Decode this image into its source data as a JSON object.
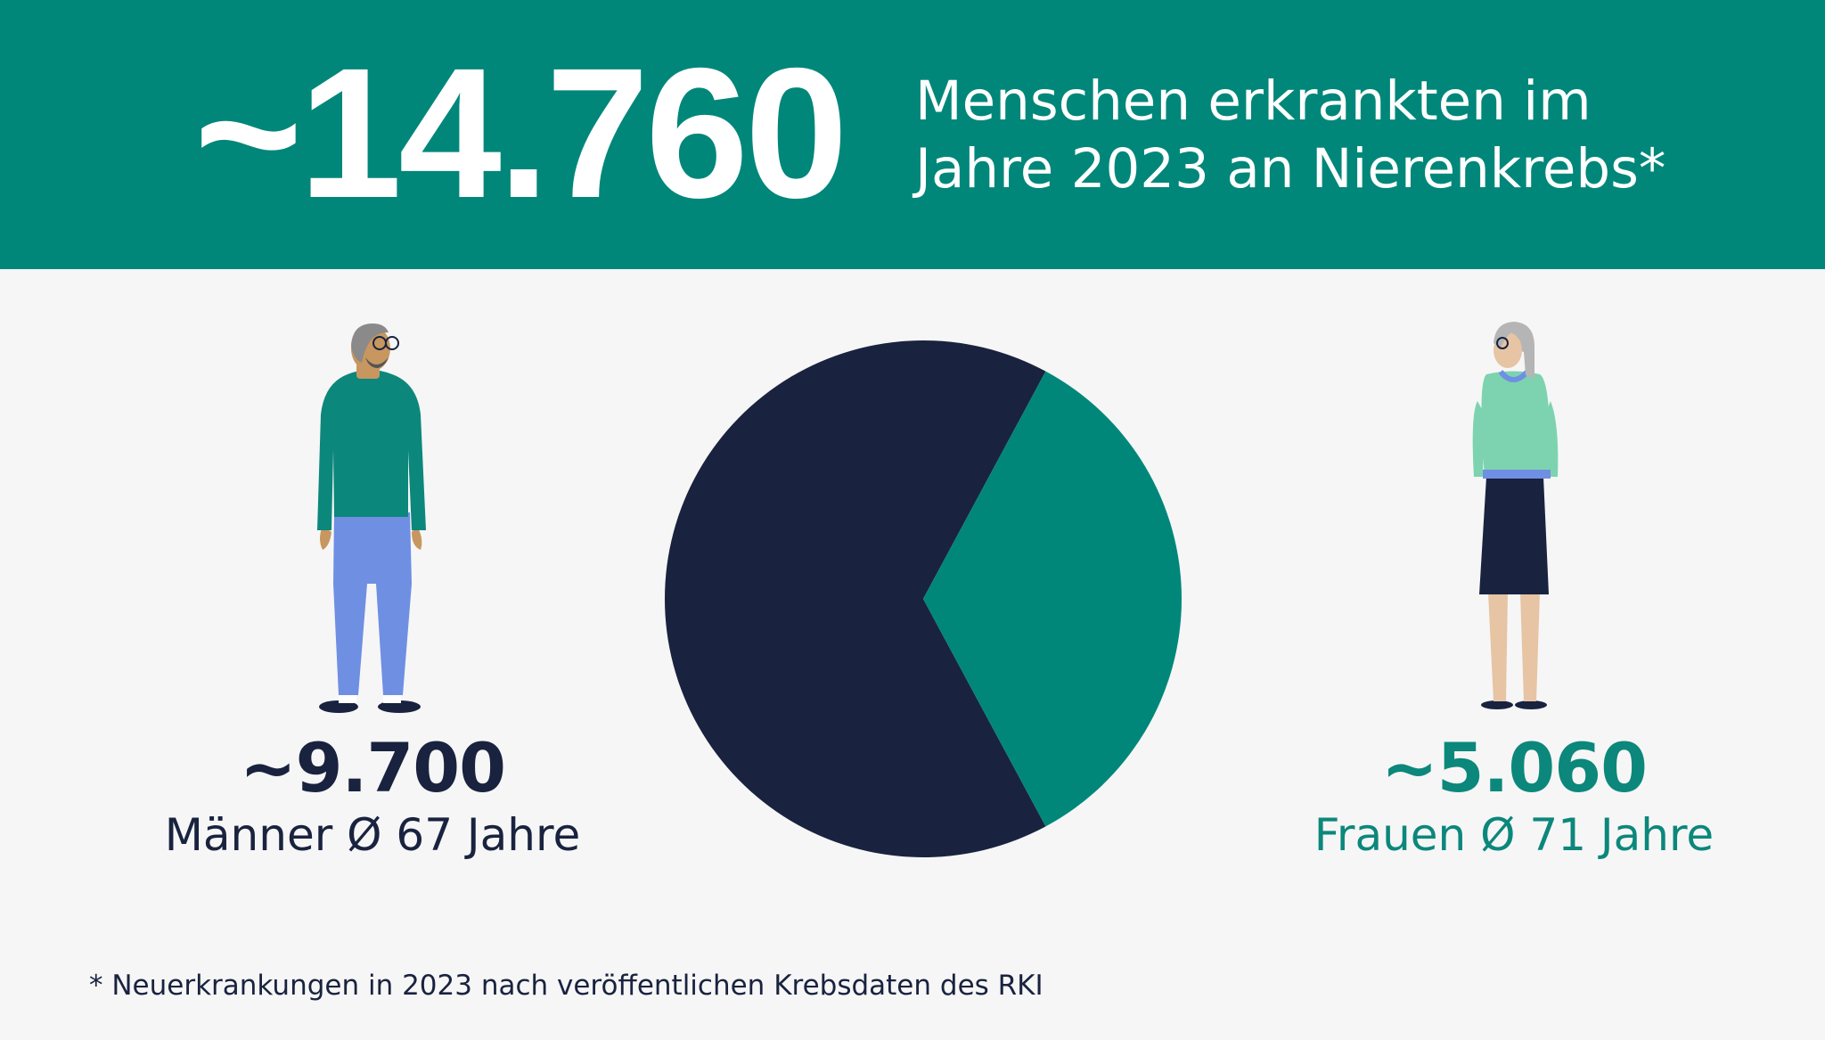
{
  "header": {
    "total": "~14.760",
    "line1": "Menschen erkrankten im",
    "line2": "Jahre 2023 an Nierenkrebs*"
  },
  "men": {
    "value": "~9.700",
    "label": "Männer Ø 67 Jahre"
  },
  "women": {
    "value": "~5.060",
    "label": "Frauen Ø 71 Jahre"
  },
  "footnote": "* Neuerkrankungen in 2023 nach veröffentlichen Krebsdaten des RKI",
  "colors": {
    "banner": "#00877a",
    "men": "#19233f",
    "women": "#0c877b",
    "background": "#f6f6f6"
  },
  "chart_data": {
    "type": "pie",
    "categories": [
      "Männer",
      "Frauen"
    ],
    "values": [
      9700,
      5060
    ],
    "colors": [
      "#19233f",
      "#00877a"
    ]
  }
}
